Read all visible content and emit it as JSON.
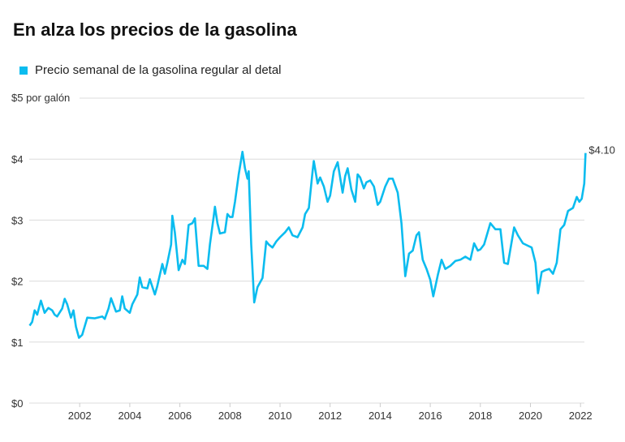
{
  "title": "En alza los precios de la gasolina",
  "chart_data": {
    "type": "line",
    "title": "En alza los precios de la gasolina",
    "ylabel": "$5 por galón",
    "ylim": [
      0,
      5
    ],
    "xlim": [
      2000,
      2022.3
    ],
    "grid": true,
    "legend_placement": "top-left",
    "line_color": "#0bbcef",
    "y_ticks": [
      {
        "v": 0,
        "label": "$0"
      },
      {
        "v": 1,
        "label": "$1"
      },
      {
        "v": 2,
        "label": "$2"
      },
      {
        "v": 3,
        "label": "$3"
      },
      {
        "v": 4,
        "label": "$4"
      },
      {
        "v": 5,
        "label": "$5 por galón"
      }
    ],
    "x_ticks": [
      {
        "v": 2002,
        "label": "2002"
      },
      {
        "v": 2004,
        "label": "2004"
      },
      {
        "v": 2006,
        "label": "2006"
      },
      {
        "v": 2008,
        "label": "2008"
      },
      {
        "v": 2010,
        "label": "2010"
      },
      {
        "v": 2012,
        "label": "2012"
      },
      {
        "v": 2014,
        "label": "2014"
      },
      {
        "v": 2016,
        "label": "2016"
      },
      {
        "v": 2018,
        "label": "2018"
      },
      {
        "v": 2020,
        "label": "2020"
      },
      {
        "v": 2022,
        "label": "2022"
      }
    ],
    "series": [
      {
        "name": "Precio semanal de la gasolina regular al detal",
        "x": [
          2000.0,
          2000.1,
          2000.2,
          2000.3,
          2000.45,
          2000.6,
          2000.75,
          2000.9,
          2001.0,
          2001.1,
          2001.3,
          2001.4,
          2001.5,
          2001.65,
          2001.75,
          2001.85,
          2001.97,
          2002.1,
          2002.3,
          2002.6,
          2002.9,
          2003.0,
          2003.15,
          2003.25,
          2003.45,
          2003.6,
          2003.7,
          2003.8,
          2004.0,
          2004.1,
          2004.3,
          2004.4,
          2004.5,
          2004.7,
          2004.8,
          2005.0,
          2005.1,
          2005.3,
          2005.4,
          2005.5,
          2005.65,
          2005.7,
          2005.8,
          2005.95,
          2006.1,
          2006.2,
          2006.35,
          2006.5,
          2006.6,
          2006.75,
          2006.95,
          2007.1,
          2007.2,
          2007.35,
          2007.4,
          2007.5,
          2007.6,
          2007.8,
          2007.9,
          2008.0,
          2008.1,
          2008.2,
          2008.35,
          2008.5,
          2008.6,
          2008.7,
          2008.75,
          2008.85,
          2008.97,
          2009.1,
          2009.3,
          2009.45,
          2009.55,
          2009.7,
          2009.85,
          2010.0,
          2010.2,
          2010.35,
          2010.5,
          2010.7,
          2010.9,
          2011.0,
          2011.15,
          2011.3,
          2011.35,
          2011.5,
          2011.6,
          2011.75,
          2011.9,
          2012.0,
          2012.15,
          2012.3,
          2012.5,
          2012.6,
          2012.7,
          2012.85,
          2013.0,
          2013.1,
          2013.2,
          2013.35,
          2013.45,
          2013.6,
          2013.75,
          2013.9,
          2014.0,
          2014.2,
          2014.35,
          2014.5,
          2014.7,
          2014.85,
          2015.0,
          2015.15,
          2015.3,
          2015.45,
          2015.55,
          2015.7,
          2015.85,
          2016.0,
          2016.12,
          2016.3,
          2016.45,
          2016.6,
          2016.8,
          2017.0,
          2017.2,
          2017.4,
          2017.6,
          2017.75,
          2017.9,
          2018.0,
          2018.15,
          2018.4,
          2018.6,
          2018.8,
          2018.95,
          2019.1,
          2019.35,
          2019.5,
          2019.7,
          2019.9,
          2020.05,
          2020.2,
          2020.3,
          2020.45,
          2020.6,
          2020.75,
          2020.9,
          2021.05,
          2021.2,
          2021.35,
          2021.5,
          2021.7,
          2021.85,
          2021.95,
          2022.05,
          2022.15,
          2022.2
        ],
        "values": [
          1.27,
          1.33,
          1.52,
          1.45,
          1.68,
          1.48,
          1.56,
          1.52,
          1.45,
          1.42,
          1.55,
          1.71,
          1.62,
          1.4,
          1.52,
          1.25,
          1.07,
          1.12,
          1.4,
          1.39,
          1.42,
          1.38,
          1.55,
          1.72,
          1.5,
          1.52,
          1.75,
          1.55,
          1.48,
          1.62,
          1.78,
          2.06,
          1.9,
          1.88,
          2.03,
          1.78,
          1.92,
          2.28,
          2.12,
          2.3,
          2.6,
          3.07,
          2.8,
          2.18,
          2.35,
          2.28,
          2.92,
          2.95,
          3.03,
          2.25,
          2.25,
          2.2,
          2.6,
          3.05,
          3.22,
          2.95,
          2.78,
          2.8,
          3.1,
          3.05,
          3.05,
          3.3,
          3.75,
          4.12,
          3.85,
          3.68,
          3.8,
          2.6,
          1.65,
          1.9,
          2.05,
          2.65,
          2.6,
          2.55,
          2.65,
          2.72,
          2.8,
          2.88,
          2.75,
          2.72,
          2.88,
          3.1,
          3.2,
          3.8,
          3.97,
          3.6,
          3.7,
          3.55,
          3.3,
          3.4,
          3.8,
          3.95,
          3.45,
          3.72,
          3.85,
          3.5,
          3.3,
          3.75,
          3.7,
          3.52,
          3.62,
          3.65,
          3.55,
          3.25,
          3.3,
          3.55,
          3.68,
          3.68,
          3.45,
          2.95,
          2.08,
          2.45,
          2.5,
          2.75,
          2.8,
          2.35,
          2.2,
          2.02,
          1.75,
          2.1,
          2.35,
          2.2,
          2.25,
          2.33,
          2.35,
          2.4,
          2.35,
          2.62,
          2.5,
          2.52,
          2.6,
          2.95,
          2.85,
          2.85,
          2.3,
          2.28,
          2.88,
          2.75,
          2.62,
          2.58,
          2.55,
          2.3,
          1.8,
          2.15,
          2.18,
          2.2,
          2.12,
          2.3,
          2.85,
          2.92,
          3.15,
          3.2,
          3.38,
          3.3,
          3.35,
          3.6,
          4.1
        ]
      }
    ],
    "annotations": [
      {
        "x": 2022.2,
        "y": 4.1,
        "label": "$4.10"
      }
    ]
  }
}
